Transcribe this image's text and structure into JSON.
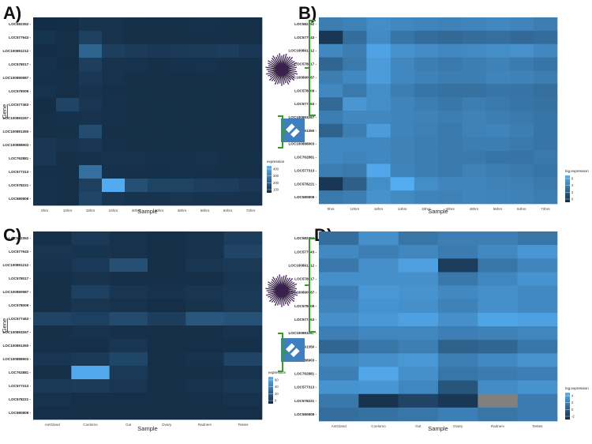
{
  "figure": {
    "panel_labels": [
      "A)",
      "B)",
      "C)",
      "D)"
    ],
    "y_axis_title": "Gene",
    "x_axis_title": "Sample",
    "genes": [
      "LOC582352",
      "LOC577943",
      "LOC100891212",
      "LOC578017",
      "LOC100890987",
      "LOC578009",
      "LOC577463",
      "LOC100893267",
      "LOC100891350",
      "LOC100888903",
      "LOC762881",
      "LOC577313",
      "LOC578221",
      "LOC580808"
    ],
    "icons": [
      "sea-urchin-larva-icon",
      "adult-sea-urchin-test-icon"
    ],
    "colors": {
      "low": "#132B43",
      "high": "#56B1F7",
      "na": "#808080",
      "bracket": "#3a9a2e",
      "panel_bg": "#ebebeb"
    }
  },
  "chart_data": [
    {
      "type": "heatmap",
      "panel": "A)",
      "ylabel": "Gene",
      "xlabel": "Sample",
      "legend_title": "expression",
      "legend_ticks": [
        "400",
        "300",
        "200",
        "100"
      ],
      "range": [
        0,
        450
      ],
      "categories": [
        "0hrs",
        "10hrs",
        "18hrs",
        "24hrs",
        "30hrs",
        "40hrs",
        "48hrs",
        "56hrs",
        "64hrs",
        "72hrs"
      ],
      "values": [
        [
          8,
          10,
          28,
          22,
          18,
          15,
          18,
          20,
          16,
          12
        ],
        [
          30,
          15,
          70,
          22,
          18,
          15,
          16,
          18,
          12,
          14
        ],
        [
          10,
          12,
          190,
          65,
          55,
          45,
          50,
          55,
          60,
          45
        ],
        [
          20,
          10,
          65,
          28,
          22,
          18,
          20,
          22,
          18,
          16
        ],
        [
          16,
          14,
          45,
          22,
          18,
          15,
          15,
          18,
          16,
          15
        ],
        [
          25,
          12,
          30,
          18,
          16,
          14,
          14,
          16,
          15,
          14
        ],
        [
          10,
          85,
          35,
          20,
          18,
          16,
          18,
          16,
          14,
          12
        ],
        [
          15,
          20,
          25,
          20,
          18,
          16,
          18,
          16,
          14,
          12
        ],
        [
          18,
          16,
          110,
          18,
          16,
          14,
          16,
          18,
          14,
          12
        ],
        [
          40,
          30,
          35,
          20,
          18,
          16,
          18,
          16,
          14,
          12
        ],
        [
          40,
          18,
          20,
          25,
          22,
          20,
          20,
          22,
          18,
          16
        ],
        [
          16,
          15,
          230,
          20,
          18,
          16,
          20,
          18,
          16,
          14
        ],
        [
          20,
          12,
          70,
          430,
          120,
          80,
          80,
          65,
          60,
          45
        ],
        [
          20,
          15,
          90,
          40,
          30,
          30,
          35,
          30,
          28,
          25
        ]
      ]
    },
    {
      "type": "heatmap",
      "panel": "B)",
      "ylabel": "Gene",
      "xlabel": "Sample",
      "legend_title": "log.expression",
      "legend_ticks": [
        "6",
        "4",
        "2",
        "0"
      ],
      "range": [
        0,
        6.5
      ],
      "categories": [
        "0hrs",
        "10hrs",
        "18hrs",
        "24hrs",
        "30hrs",
        "40hrs",
        "48hrs",
        "56hrs",
        "64hrs",
        "72hrs"
      ],
      "values": [
        [
          4.0,
          4.2,
          4.8,
          4.5,
          4.3,
          4.2,
          4.3,
          4.5,
          4.3,
          4.0
        ],
        [
          0.6,
          3.2,
          4.6,
          3.6,
          3.2,
          3.0,
          3.2,
          3.3,
          3.0,
          3.2
        ],
        [
          4.5,
          4.0,
          5.8,
          5.0,
          4.7,
          4.5,
          4.6,
          4.8,
          4.9,
          4.5
        ],
        [
          2.8,
          3.8,
          5.5,
          4.5,
          4.0,
          3.8,
          4.0,
          4.2,
          3.9,
          3.6
        ],
        [
          4.0,
          4.5,
          5.5,
          4.5,
          4.2,
          4.0,
          4.0,
          4.3,
          4.2,
          4.0
        ],
        [
          4.5,
          3.8,
          4.8,
          4.0,
          3.6,
          3.4,
          3.4,
          3.6,
          3.5,
          3.3
        ],
        [
          3.0,
          5.2,
          4.8,
          4.3,
          4.0,
          3.7,
          4.0,
          3.8,
          3.6,
          3.4
        ],
        [
          4.0,
          4.5,
          4.5,
          4.3,
          4.2,
          4.0,
          4.2,
          4.0,
          3.8,
          3.6
        ],
        [
          2.6,
          4.0,
          5.5,
          4.3,
          4.1,
          3.8,
          4.2,
          4.3,
          4.0,
          3.6
        ],
        [
          4.5,
          4.5,
          4.5,
          4.2,
          4.0,
          3.8,
          4.0,
          4.0,
          3.8,
          3.6
        ],
        [
          4.5,
          4.3,
          4.5,
          4.2,
          4.0,
          3.8,
          3.8,
          3.6,
          3.5,
          3.8
        ],
        [
          4.0,
          3.8,
          6.0,
          4.3,
          4.0,
          3.8,
          4.2,
          4.0,
          3.8,
          3.6
        ],
        [
          0.6,
          2.5,
          4.8,
          6.3,
          4.8,
          4.4,
          4.4,
          4.2,
          4.1,
          3.8
        ],
        [
          3.8,
          4.0,
          5.0,
          4.6,
          4.3,
          4.2,
          4.4,
          4.3,
          4.2,
          4.0
        ]
      ]
    },
    {
      "type": "heatmap",
      "panel": "C)",
      "ylabel": "Gene",
      "xlabel": "Sample",
      "legend_title": "expression",
      "legend_ticks": [
        "60",
        "40",
        "20",
        "0"
      ],
      "range": [
        0,
        75
      ],
      "categories": [
        "AntGland",
        "Coelomo",
        "Gut",
        "Ovary",
        "Radnerv",
        "Testes"
      ],
      "values": [
        [
          3,
          8,
          4,
          2,
          4,
          10
        ],
        [
          6,
          5,
          4,
          2,
          4,
          14
        ],
        [
          4,
          8,
          20,
          2,
          6,
          8
        ],
        [
          3,
          4,
          3,
          2,
          3,
          6
        ],
        [
          2,
          12,
          6,
          4,
          6,
          8
        ],
        [
          3,
          6,
          4,
          2,
          5,
          8
        ],
        [
          14,
          12,
          18,
          10,
          24,
          22
        ],
        [
          3,
          4,
          3,
          2,
          3,
          4
        ],
        [
          3,
          2,
          6,
          2,
          2,
          3
        ],
        [
          6,
          8,
          15,
          2,
          4,
          14
        ],
        [
          2,
          70,
          8,
          2,
          2,
          4
        ],
        [
          8,
          9,
          6,
          2,
          4,
          7
        ],
        [
          4,
          2,
          2,
          2,
          2,
          4
        ],
        [
          2,
          2,
          2,
          2,
          2,
          2
        ]
      ]
    },
    {
      "type": "heatmap",
      "panel": "D)",
      "ylabel": "Gene",
      "xlabel": "Sample",
      "legend_title": "log.expression",
      "legend_ticks": [
        "4",
        "2",
        "0",
        "-2"
      ],
      "range": [
        -3,
        5
      ],
      "na_cells": [
        [
          12,
          4
        ]
      ],
      "categories": [
        "AntGland",
        "Coelomo",
        "Gut",
        "Ovary",
        "Radnerv",
        "Testes"
      ],
      "values": [
        [
          1.0,
          3.0,
          1.5,
          2.0,
          2.0,
          1.5
        ],
        [
          2.6,
          2.0,
          2.5,
          1.8,
          2.6,
          3.4
        ],
        [
          1.6,
          3.0,
          4.0,
          -2.0,
          1.5,
          2.4
        ],
        [
          3.0,
          3.0,
          3.0,
          1.6,
          2.5,
          3.2
        ],
        [
          2.0,
          3.5,
          3.2,
          2.6,
          3.0,
          2.6
        ],
        [
          2.3,
          3.2,
          3.0,
          2.2,
          3.0,
          2.6
        ],
        [
          3.0,
          3.5,
          4.0,
          3.0,
          4.2,
          4.0
        ],
        [
          2.0,
          2.5,
          2.5,
          2.0,
          2.2,
          2.5
        ],
        [
          0.5,
          1.5,
          2.0,
          0.2,
          0.5,
          1.5
        ],
        [
          2.6,
          3.0,
          3.5,
          2.0,
          2.6,
          3.2
        ],
        [
          2.0,
          4.4,
          3.0,
          1.5,
          1.8,
          2.0
        ],
        [
          3.2,
          3.3,
          2.5,
          -0.5,
          2.8,
          3.2
        ],
        [
          1.6,
          -2.6,
          -1.5,
          -2.2,
          null,
          1.8
        ],
        [
          1.0,
          1.2,
          1.5,
          2.0,
          1.5,
          1.8
        ]
      ]
    }
  ]
}
